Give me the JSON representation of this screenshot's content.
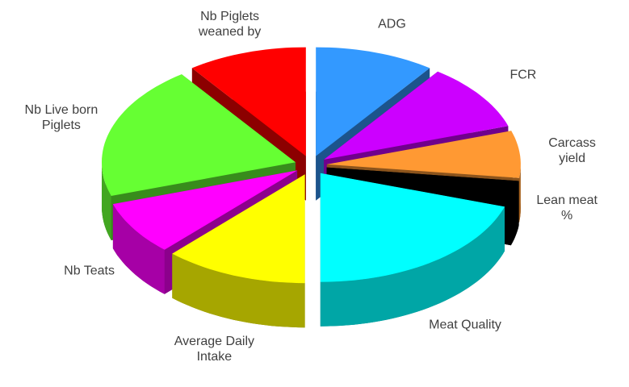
{
  "chart_data": {
    "type": "pie",
    "three_d": true,
    "exploded": true,
    "categories": [
      "ADG",
      "FCR",
      "Carcass yield",
      "Lean meat %",
      "Meat Quality",
      "Average Daily Intake",
      "Nb Teats",
      "Nb Live born Piglets",
      "Nb Piglets weaned by"
    ],
    "values": [
      10,
      10,
      7,
      3,
      20,
      12,
      8,
      20,
      10
    ],
    "colors": [
      "#3399ff",
      "#cc00ff",
      "#ff9933",
      "#000000",
      "#00ffff",
      "#ffff00",
      "#ff00ff",
      "#66ff33",
      "#ff0000"
    ]
  }
}
